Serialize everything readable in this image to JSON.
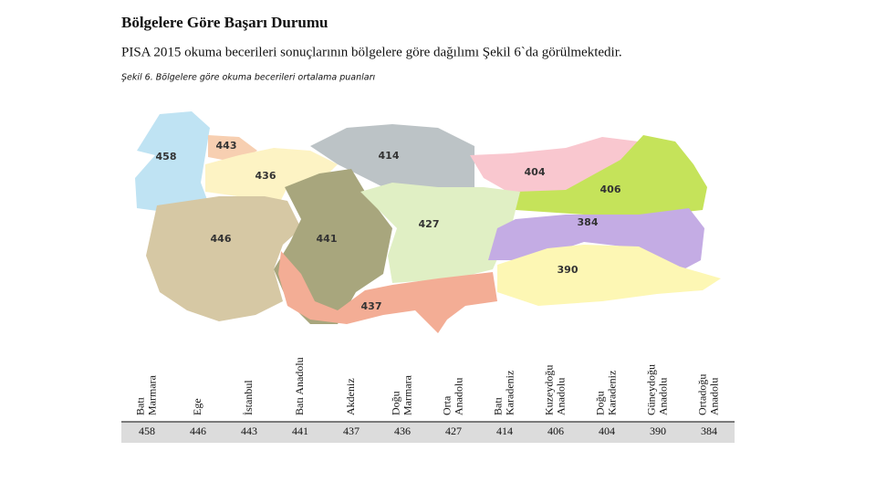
{
  "header": {
    "title": "Bölgelere Göre Başarı Durumu",
    "subtitle": "PISA 2015 okuma becerileri sonuçlarının bölgelere göre dağılımı Şekil 6`da görülmektedir."
  },
  "figure": {
    "caption": "Şekil 6. Bölgelere göre okuma becerileri ortalama puanları",
    "map_labels": [
      458,
      443,
      436,
      414,
      404,
      406,
      446,
      441,
      427,
      384,
      390,
      437
    ]
  },
  "table": {
    "columns": [
      [
        "Batı",
        "Marmara"
      ],
      [
        "Ege"
      ],
      [
        "İstanbul"
      ],
      [
        "Batı Anadolu"
      ],
      [
        "Akdeniz"
      ],
      [
        "Doğu",
        "Marmara"
      ],
      [
        "Orta",
        "Anadolu"
      ],
      [
        "Batı",
        "Karadeniz"
      ],
      [
        "Kuzeydoğu",
        "Anadolu"
      ],
      [
        "Doğu",
        "Karadeniz"
      ],
      [
        "Güneydoğu",
        "Anadolu"
      ],
      [
        "Ortadoğu",
        "Anadolu"
      ]
    ],
    "rows": [
      [
        458,
        446,
        443,
        441,
        437,
        436,
        427,
        414,
        406,
        404,
        390,
        384
      ]
    ]
  }
}
